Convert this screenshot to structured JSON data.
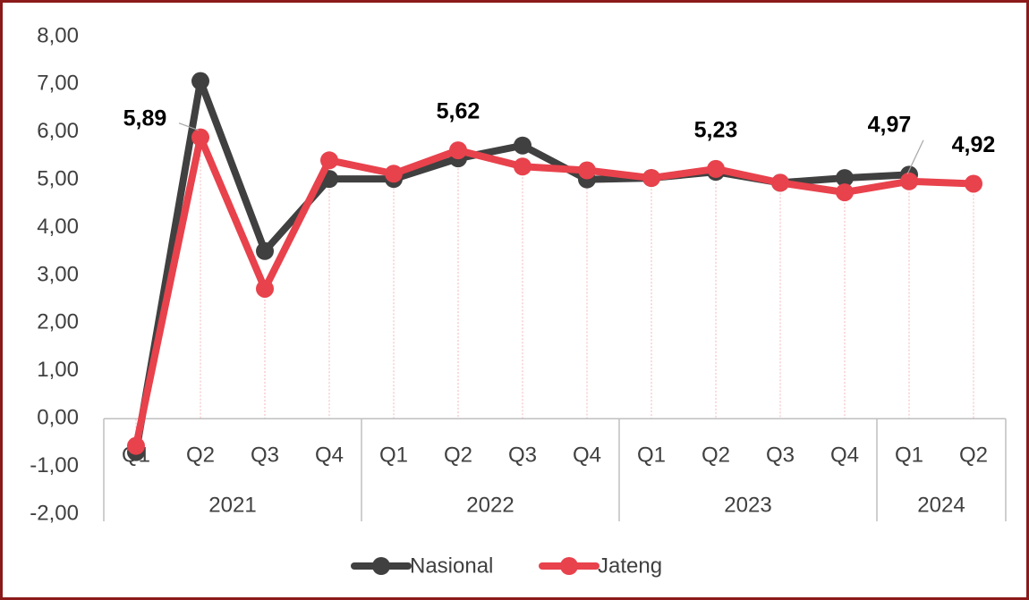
{
  "chart_data": {
    "type": "line",
    "categories": [
      "Q1",
      "Q2",
      "Q3",
      "Q4",
      "Q1",
      "Q2",
      "Q3",
      "Q4",
      "Q1",
      "Q2",
      "Q3",
      "Q4",
      "Q1",
      "Q2"
    ],
    "category_groups": [
      {
        "name": "2021",
        "count": 4
      },
      {
        "name": "2022",
        "count": 4
      },
      {
        "name": "2023",
        "count": 4
      },
      {
        "name": "2024",
        "count": 2
      }
    ],
    "series": [
      {
        "name": "Nasional",
        "color": "#404040",
        "values": [
          -0.7,
          7.07,
          3.51,
          5.02,
          5.02,
          5.45,
          5.72,
          5.01,
          5.04,
          5.17,
          4.94,
          5.04,
          5.11,
          null
        ]
      },
      {
        "name": "Jateng",
        "color": "#e8424c",
        "values": [
          -0.57,
          5.89,
          2.72,
          5.41,
          5.13,
          5.62,
          5.28,
          5.2,
          5.04,
          5.23,
          4.94,
          4.74,
          4.97,
          4.92
        ],
        "value_labels": [
          null,
          "5,89",
          null,
          null,
          null,
          "5,62",
          null,
          null,
          null,
          "5,23",
          null,
          null,
          "4,97",
          "4,92"
        ]
      }
    ],
    "ylim": [
      -2,
      8
    ],
    "yticks": [
      {
        "value": -2,
        "label": "-2,00"
      },
      {
        "value": -1,
        "label": "-1,00"
      },
      {
        "value": 0,
        "label": "0,00"
      },
      {
        "value": 1,
        "label": "1,00"
      },
      {
        "value": 2,
        "label": "2,00"
      },
      {
        "value": 3,
        "label": "3,00"
      },
      {
        "value": 4,
        "label": "4,00"
      },
      {
        "value": 5,
        "label": "5,00"
      },
      {
        "value": 6,
        "label": "6,00"
      },
      {
        "value": 7,
        "label": "7,00"
      },
      {
        "value": 8,
        "label": "8,00"
      }
    ],
    "legend": "bottom",
    "grid": false
  }
}
